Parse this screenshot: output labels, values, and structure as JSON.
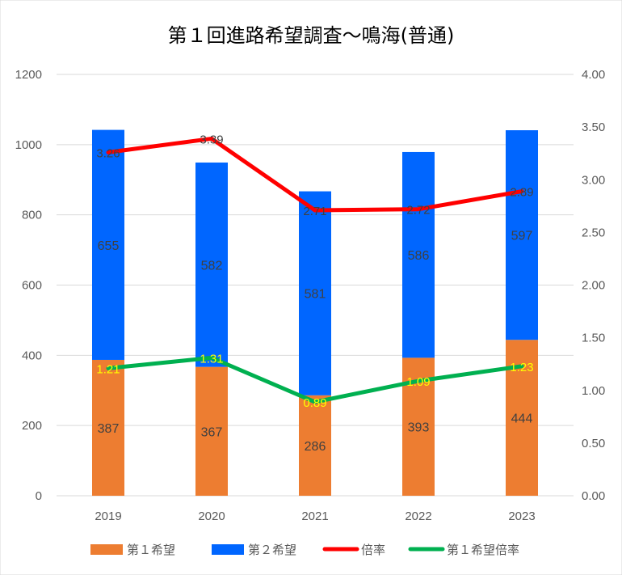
{
  "chart_data": {
    "type": "bar",
    "title": "第１回進路希望調査～鳴海(普通)",
    "categories": [
      "2019",
      "2020",
      "2021",
      "2022",
      "2023"
    ],
    "series": [
      {
        "name": "第１希望",
        "kind": "stacked-bar",
        "axis": "left",
        "color": "#ed7d31",
        "values": [
          387,
          367,
          286,
          393,
          444
        ]
      },
      {
        "name": "第２希望",
        "kind": "stacked-bar",
        "axis": "left",
        "color": "#0066ff",
        "values": [
          655,
          582,
          581,
          586,
          597
        ]
      },
      {
        "name": "倍率",
        "kind": "line",
        "axis": "right",
        "color": "#ff0000",
        "values": [
          3.26,
          3.39,
          2.71,
          2.72,
          2.89
        ],
        "labels": [
          "3.26",
          "3.39",
          "2.71",
          "2.72",
          "2.89"
        ]
      },
      {
        "name": "第１希望倍率",
        "kind": "line",
        "axis": "right",
        "color": "#00b050",
        "values": [
          1.21,
          1.31,
          0.89,
          1.09,
          1.23
        ],
        "labels": [
          "1.21",
          "1.31",
          "0.89",
          "1.09",
          "1.23"
        ]
      }
    ],
    "left_axis": {
      "ylim": [
        0,
        1200
      ],
      "ticks": [
        "0",
        "200",
        "400",
        "600",
        "800",
        "1000",
        "1200"
      ]
    },
    "right_axis": {
      "ylim": [
        0,
        4
      ],
      "ticks": [
        "0.00",
        "0.50",
        "1.00",
        "1.50",
        "2.00",
        "2.50",
        "3.00",
        "3.50",
        "4.00"
      ]
    },
    "grid": true,
    "legend_position": "bottom"
  }
}
